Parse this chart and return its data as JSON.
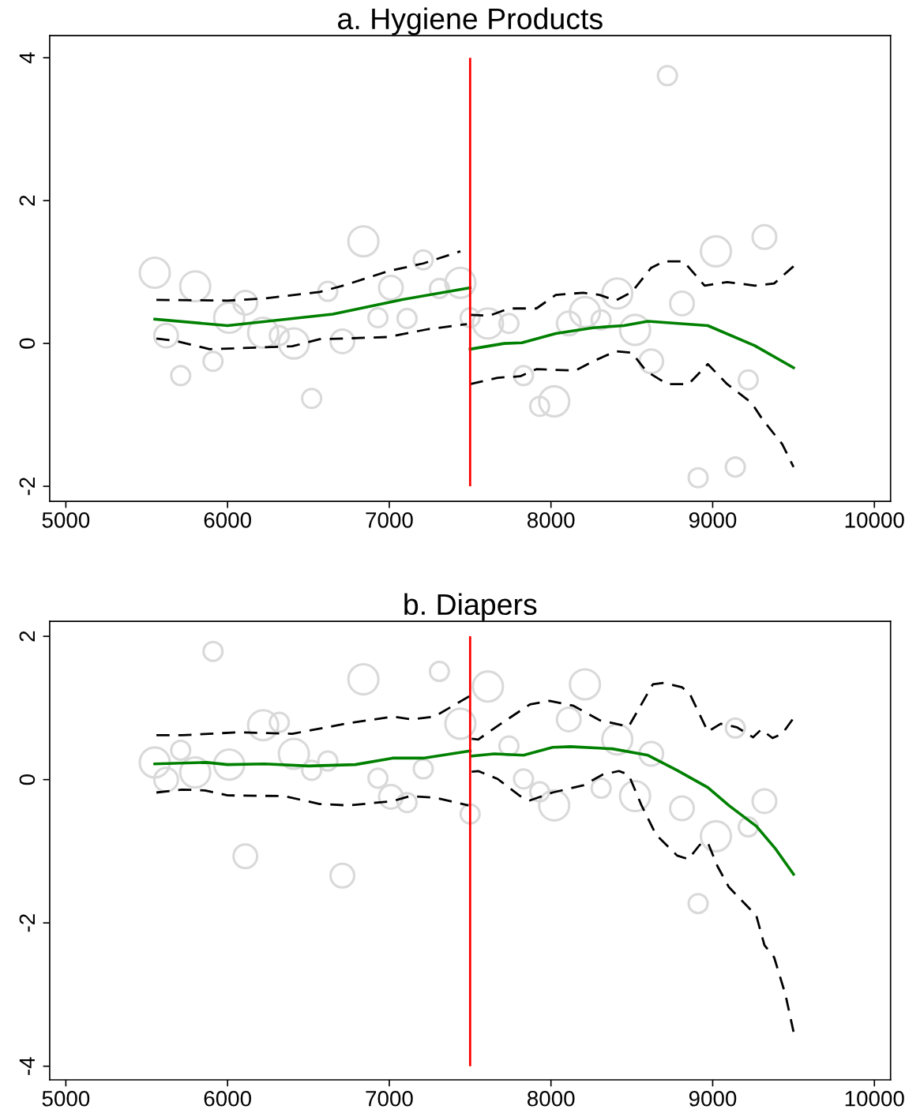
{
  "chart_data": [
    {
      "type": "scatter",
      "title": "a. Hygiene Products",
      "xlim": [
        4900,
        10100
      ],
      "ylim": [
        -2.21,
        4.31
      ],
      "xticks": [
        5000,
        6000,
        7000,
        8000,
        9000,
        10000
      ],
      "yticks": [
        -2,
        0,
        2,
        4
      ],
      "grid": false,
      "legend": false,
      "ref_lines": [
        {
          "axis": "x",
          "value": 7500,
          "color": "#ff0000"
        }
      ],
      "series": [
        {
          "marker": "circle",
          "color": "#d9d9d9",
          "x": [
            5550,
            5620,
            5710,
            5800,
            5910,
            6010,
            6110,
            6220,
            6320,
            6410,
            6520,
            6620,
            6710,
            6840,
            6930,
            7010,
            7110,
            7210,
            7310,
            7440,
            7500,
            7610,
            7740,
            7830,
            7930,
            8020,
            8110,
            8210,
            8310,
            8410,
            8520,
            8620,
            8720,
            8810,
            8910,
            9020,
            9140,
            9220,
            9320
          ],
          "values": [
            0.99,
            0.11,
            -0.45,
            0.8,
            -0.25,
            0.36,
            0.57,
            0.15,
            0.11,
            0.0,
            -0.77,
            0.73,
            0.03,
            1.43,
            0.36,
            0.78,
            0.35,
            1.17,
            0.77,
            0.85,
            0.36,
            0.28,
            0.28,
            -0.45,
            -0.88,
            -0.81,
            0.28,
            0.44,
            0.33,
            0.7,
            0.19,
            -0.25,
            3.75,
            0.56,
            -1.88,
            1.29,
            -1.73,
            -0.51,
            1.49
          ],
          "sizes": [
            1,
            0.62,
            0.4,
            1,
            0.4,
            1,
            0.62,
            1,
            0.4,
            1,
            0.4,
            0.4,
            0.62,
            1,
            0.4,
            0.62,
            0.4,
            0.4,
            0.4,
            1,
            0.4,
            1,
            0.4,
            0.4,
            0.4,
            1,
            0.62,
            1,
            0.4,
            1,
            1,
            0.62,
            0.4,
            0.62,
            0.4,
            1,
            0.4,
            0.4,
            0.62
          ]
        },
        {
          "type": "line",
          "line_style": "solid",
          "color": "#008000",
          "x": [
            5550,
            6000,
            6650,
            7070,
            7500
          ],
          "values": [
            0.34,
            0.25,
            0.41,
            0.61,
            0.78
          ]
        },
        {
          "type": "line",
          "line_style": "dashed",
          "color": "#000000",
          "x": [
            5560,
            6000,
            6230,
            6570,
            6730,
            6990,
            7210,
            7440
          ],
          "values": [
            0.61,
            0.6,
            0.63,
            0.72,
            0.82,
            1.01,
            1.12,
            1.29
          ]
        },
        {
          "type": "line",
          "line_style": "dashed",
          "color": "#000000",
          "x": [
            5560,
            5670,
            5890,
            6400,
            6570,
            6730,
            6990,
            7240,
            7480
          ],
          "values": [
            0.07,
            0.04,
            -0.08,
            -0.04,
            0.06,
            0.07,
            0.09,
            0.2,
            0.27
          ]
        },
        {
          "type": "line",
          "line_style": "solid",
          "color": "#008000",
          "x": [
            7500,
            7710,
            7820,
            8030,
            8260,
            8450,
            8600,
            8970,
            9260,
            9500
          ],
          "values": [
            -0.08,
            0.0,
            0.01,
            0.14,
            0.22,
            0.25,
            0.31,
            0.25,
            -0.03,
            -0.34
          ]
        },
        {
          "type": "line",
          "line_style": "dashed",
          "color": "#000000",
          "x": [
            7500,
            7620,
            7740,
            7910,
            8030,
            8200,
            8300,
            8400,
            8500,
            8620,
            8700,
            8820,
            8950,
            9090,
            9260,
            9380,
            9500
          ],
          "values": [
            0.4,
            0.39,
            0.49,
            0.49,
            0.68,
            0.71,
            0.68,
            0.6,
            0.72,
            1.06,
            1.15,
            1.15,
            0.81,
            0.86,
            0.81,
            0.84,
            1.08
          ]
        },
        {
          "type": "line",
          "line_style": "dashed",
          "color": "#000000",
          "x": [
            7500,
            7670,
            7810,
            7910,
            8150,
            8260,
            8400,
            8500,
            8590,
            8720,
            8850,
            8970,
            9090,
            9240,
            9310,
            9430,
            9500
          ],
          "values": [
            -0.57,
            -0.48,
            -0.46,
            -0.36,
            -0.38,
            -0.25,
            -0.11,
            -0.13,
            -0.39,
            -0.57,
            -0.57,
            -0.29,
            -0.57,
            -0.83,
            -1.07,
            -1.41,
            -1.73
          ]
        }
      ]
    },
    {
      "type": "scatter",
      "title": "b. Diapers",
      "xlim": [
        4900,
        10100
      ],
      "ylim": [
        -4.19,
        2.21
      ],
      "xticks": [
        5000,
        6000,
        7000,
        8000,
        9000,
        10000
      ],
      "yticks": [
        -4,
        -2,
        0,
        2
      ],
      "grid": false,
      "legend": false,
      "ref_lines": [
        {
          "axis": "x",
          "value": 7500,
          "color": "#ff0000"
        }
      ],
      "series": [
        {
          "marker": "circle",
          "color": "#d9d9d9",
          "x": [
            5550,
            5620,
            5710,
            5800,
            5910,
            6010,
            6110,
            6220,
            6320,
            6410,
            6520,
            6620,
            6710,
            6840,
            6930,
            7010,
            7110,
            7210,
            7310,
            7440,
            7500,
            7610,
            7740,
            7830,
            7930,
            8020,
            8110,
            8210,
            8310,
            8410,
            8520,
            8620,
            8810,
            8910,
            9020,
            9140,
            9220,
            9320
          ],
          "values": [
            0.24,
            0.0,
            0.41,
            0.1,
            1.79,
            0.21,
            -1.07,
            0.76,
            0.8,
            0.36,
            0.13,
            0.26,
            -1.34,
            1.4,
            0.02,
            -0.24,
            -0.32,
            0.15,
            1.51,
            0.78,
            -0.48,
            1.3,
            0.47,
            0.01,
            -0.17,
            -0.36,
            0.84,
            1.33,
            -0.12,
            0.56,
            -0.23,
            0.36,
            -0.4,
            -1.73,
            -0.79,
            0.72,
            -0.66,
            -0.3
          ],
          "sizes": [
            1,
            0.62,
            0.4,
            1,
            0.4,
            1,
            0.62,
            1,
            0.4,
            1,
            0.4,
            0.4,
            0.62,
            1,
            0.4,
            0.62,
            0.4,
            0.4,
            0.4,
            1,
            0.4,
            1,
            0.4,
            0.4,
            0.4,
            1,
            0.62,
            1,
            0.4,
            1,
            1,
            0.62,
            0.62,
            0.4,
            1,
            0.4,
            0.4,
            0.62
          ]
        },
        {
          "type": "line",
          "line_style": "solid",
          "color": "#008000",
          "x": [
            5550,
            5870,
            6000,
            6230,
            6500,
            6790,
            7020,
            7210,
            7500
          ],
          "values": [
            0.22,
            0.24,
            0.21,
            0.22,
            0.19,
            0.21,
            0.3,
            0.3,
            0.4
          ]
        },
        {
          "type": "line",
          "line_style": "dashed",
          "color": "#000000",
          "x": [
            5560,
            5720,
            6060,
            6400,
            6730,
            7020,
            7140,
            7280,
            7500
          ],
          "values": [
            0.62,
            0.62,
            0.66,
            0.64,
            0.78,
            0.88,
            0.84,
            0.88,
            1.17
          ]
        },
        {
          "type": "line",
          "line_style": "dashed",
          "color": "#000000",
          "x": [
            5560,
            5720,
            5860,
            6000,
            6350,
            6570,
            6750,
            7020,
            7130,
            7280,
            7490
          ],
          "values": [
            -0.18,
            -0.14,
            -0.15,
            -0.22,
            -0.23,
            -0.34,
            -0.36,
            -0.3,
            -0.23,
            -0.25,
            -0.36
          ]
        },
        {
          "type": "line",
          "line_style": "solid",
          "color": "#008000",
          "x": [
            7510,
            7650,
            7830,
            8010,
            8120,
            8380,
            8600,
            8780,
            8970,
            9100,
            9270,
            9390,
            9500
          ],
          "values": [
            0.33,
            0.36,
            0.34,
            0.45,
            0.46,
            0.43,
            0.34,
            0.13,
            -0.11,
            -0.36,
            -0.65,
            -0.97,
            -1.32
          ]
        },
        {
          "type": "line",
          "line_style": "dashed",
          "color": "#000000",
          "x": [
            7510,
            7550,
            7690,
            7870,
            7990,
            8140,
            8300,
            8480,
            8630,
            8700,
            8810,
            8860,
            8970,
            9050,
            9150,
            9250,
            9300,
            9370,
            9430,
            9500
          ],
          "values": [
            0.57,
            0.56,
            0.78,
            1.05,
            1.1,
            1.03,
            0.83,
            0.74,
            1.33,
            1.35,
            1.29,
            1.19,
            0.67,
            0.78,
            0.73,
            0.59,
            0.7,
            0.58,
            0.64,
            0.86
          ]
        },
        {
          "type": "line",
          "line_style": "dashed",
          "color": "#000000",
          "x": [
            7510,
            7550,
            7670,
            7810,
            7870,
            8010,
            8200,
            8320,
            8420,
            8480,
            8560,
            8650,
            8780,
            8850,
            8920,
            8970,
            9030,
            9100,
            9270,
            9320,
            9380,
            9450,
            9500
          ],
          "values": [
            0.11,
            0.12,
            0.01,
            -0.23,
            -0.29,
            -0.18,
            -0.08,
            0.07,
            0.12,
            0.07,
            -0.36,
            -0.77,
            -1.06,
            -1.11,
            -0.91,
            -0.88,
            -1.21,
            -1.5,
            -1.9,
            -2.31,
            -2.48,
            -3.0,
            -3.52
          ]
        }
      ]
    }
  ]
}
